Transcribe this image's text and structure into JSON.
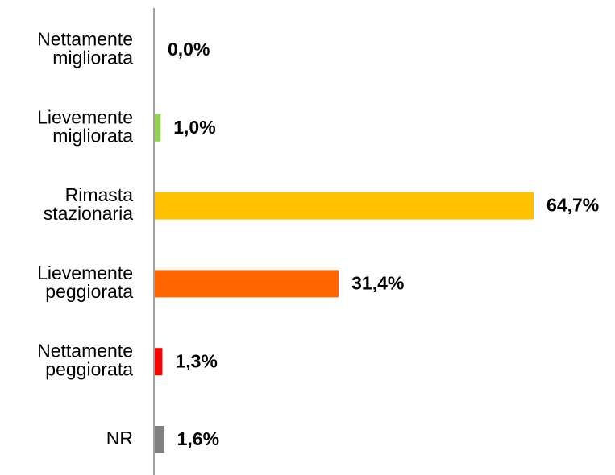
{
  "chart_data": {
    "type": "bar",
    "orientation": "horizontal",
    "categories": [
      [
        "Nettamente",
        "migliorata"
      ],
      [
        "Lievemente",
        "migliorata"
      ],
      [
        "Rimasta",
        "stazionaria"
      ],
      [
        "Lievemente",
        "peggiorata"
      ],
      [
        "Nettamente",
        "peggiorata"
      ],
      [
        "NR"
      ]
    ],
    "values": [
      0,
      1.0,
      64.7,
      31.4,
      1.3,
      1.6
    ],
    "value_labels": [
      "0,0%",
      "1,0%",
      "64,7%",
      "31,4%",
      "1,3%",
      "1,6%"
    ],
    "colors": [
      "#00b050",
      "#92d050",
      "#ffc000",
      "#ff6600",
      "#ff0000",
      "#808080"
    ]
  }
}
